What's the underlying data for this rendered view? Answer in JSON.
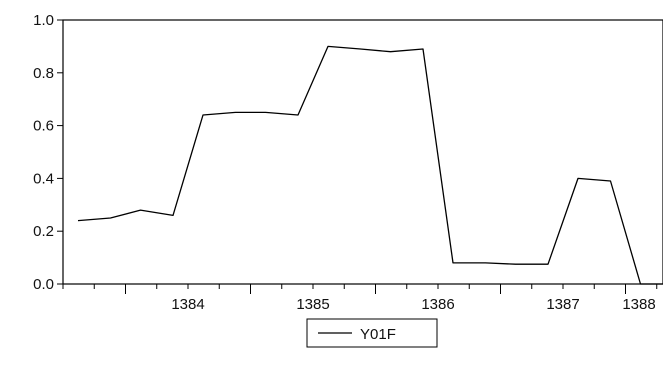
{
  "chart_data": {
    "type": "line",
    "x": [
      1383.62,
      1383.88,
      1384.12,
      1384.38,
      1384.62,
      1384.88,
      1385.12,
      1385.38,
      1385.62,
      1385.88,
      1386.12,
      1386.38,
      1386.62,
      1386.88,
      1387.12,
      1387.38,
      1387.62,
      1387.88,
      1388.12,
      1388.3
    ],
    "series": [
      {
        "name": "Y01F",
        "values": [
          0.24,
          0.25,
          0.28,
          0.26,
          0.64,
          0.65,
          0.65,
          0.64,
          0.9,
          0.89,
          0.88,
          0.89,
          0.08,
          0.08,
          0.075,
          0.075,
          0.4,
          0.39,
          0.0,
          0.0
        ],
        "color": "#000000"
      }
    ],
    "xticks": [
      1384,
      1385,
      1386,
      1387,
      1388
    ],
    "xtick_labels": [
      "1384",
      "1385",
      "1386",
      "1387",
      "1388"
    ],
    "yticks": [
      0.0,
      0.2,
      0.4,
      0.6,
      0.8,
      1.0
    ],
    "ytick_labels": [
      "0.0",
      "0.2",
      "0.4",
      "0.6",
      "0.8",
      "1.0"
    ],
    "xlim": [
      1383.5,
      1388.3
    ],
    "ylim": [
      0.0,
      1.0
    ],
    "grid": false,
    "legend_position": "bottom-center",
    "title": "",
    "xlabel": "",
    "ylabel": ""
  }
}
